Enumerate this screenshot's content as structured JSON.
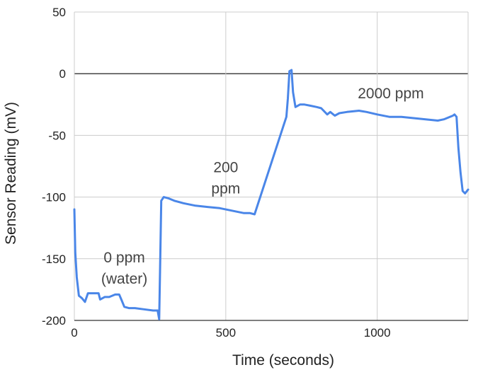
{
  "chart_data": {
    "type": "line",
    "title": "",
    "xlabel": "Time (seconds)",
    "ylabel": "Sensor Reading (mV)",
    "xlim": [
      0,
      1300
    ],
    "ylim": [
      -200,
      50
    ],
    "x_ticks": [
      0,
      500,
      1000
    ],
    "y_ticks": [
      50,
      0,
      -50,
      -100,
      -150,
      -200
    ],
    "x_tick_labels": [
      "0",
      "500",
      "1000"
    ],
    "y_tick_labels": [
      "50",
      "0",
      "-50",
      "-100",
      "-150",
      "-200"
    ],
    "grid": true,
    "zero_line": true,
    "line_color": "#4a86e8",
    "annotations": [
      {
        "lines": [
          "0 ppm",
          "(water)"
        ],
        "x": 165,
        "y": -153
      },
      {
        "lines": [
          "200",
          "ppm"
        ],
        "x": 500,
        "y": -80
      },
      {
        "lines": [
          "2000 ppm"
        ],
        "x": 1045,
        "y": -20
      }
    ],
    "series": [
      {
        "points": [
          [
            0,
            -110
          ],
          [
            3,
            -145
          ],
          [
            8,
            -165
          ],
          [
            15,
            -180
          ],
          [
            25,
            -182
          ],
          [
            35,
            -185
          ],
          [
            45,
            -178
          ],
          [
            60,
            -178
          ],
          [
            80,
            -178
          ],
          [
            85,
            -183
          ],
          [
            100,
            -181
          ],
          [
            115,
            -181
          ],
          [
            135,
            -179
          ],
          [
            148,
            -179
          ],
          [
            155,
            -183
          ],
          [
            165,
            -189
          ],
          [
            180,
            -190
          ],
          [
            200,
            -190
          ],
          [
            230,
            -191
          ],
          [
            260,
            -192
          ],
          [
            275,
            -192
          ],
          [
            280,
            -199
          ],
          [
            283,
            -160
          ],
          [
            287,
            -103
          ],
          [
            295,
            -100
          ],
          [
            310,
            -101
          ],
          [
            330,
            -103
          ],
          [
            360,
            -105
          ],
          [
            400,
            -107
          ],
          [
            440,
            -108
          ],
          [
            480,
            -109
          ],
          [
            520,
            -111
          ],
          [
            560,
            -113
          ],
          [
            580,
            -113
          ],
          [
            595,
            -114
          ],
          [
            700,
            -35
          ],
          [
            705,
            -20
          ],
          [
            710,
            2
          ],
          [
            717,
            3
          ],
          [
            722,
            -15
          ],
          [
            730,
            -27
          ],
          [
            745,
            -25
          ],
          [
            760,
            -25
          ],
          [
            780,
            -26
          ],
          [
            800,
            -27
          ],
          [
            815,
            -28
          ],
          [
            835,
            -33
          ],
          [
            845,
            -31
          ],
          [
            860,
            -34
          ],
          [
            875,
            -32
          ],
          [
            900,
            -31
          ],
          [
            940,
            -30
          ],
          [
            965,
            -31
          ],
          [
            1000,
            -33
          ],
          [
            1040,
            -35
          ],
          [
            1080,
            -35
          ],
          [
            1120,
            -36
          ],
          [
            1160,
            -37
          ],
          [
            1200,
            -38
          ],
          [
            1220,
            -37
          ],
          [
            1240,
            -35
          ],
          [
            1250,
            -34
          ],
          [
            1255,
            -33
          ],
          [
            1262,
            -35
          ],
          [
            1268,
            -60
          ],
          [
            1275,
            -80
          ],
          [
            1282,
            -95
          ],
          [
            1290,
            -97
          ],
          [
            1300,
            -94
          ]
        ]
      }
    ]
  }
}
